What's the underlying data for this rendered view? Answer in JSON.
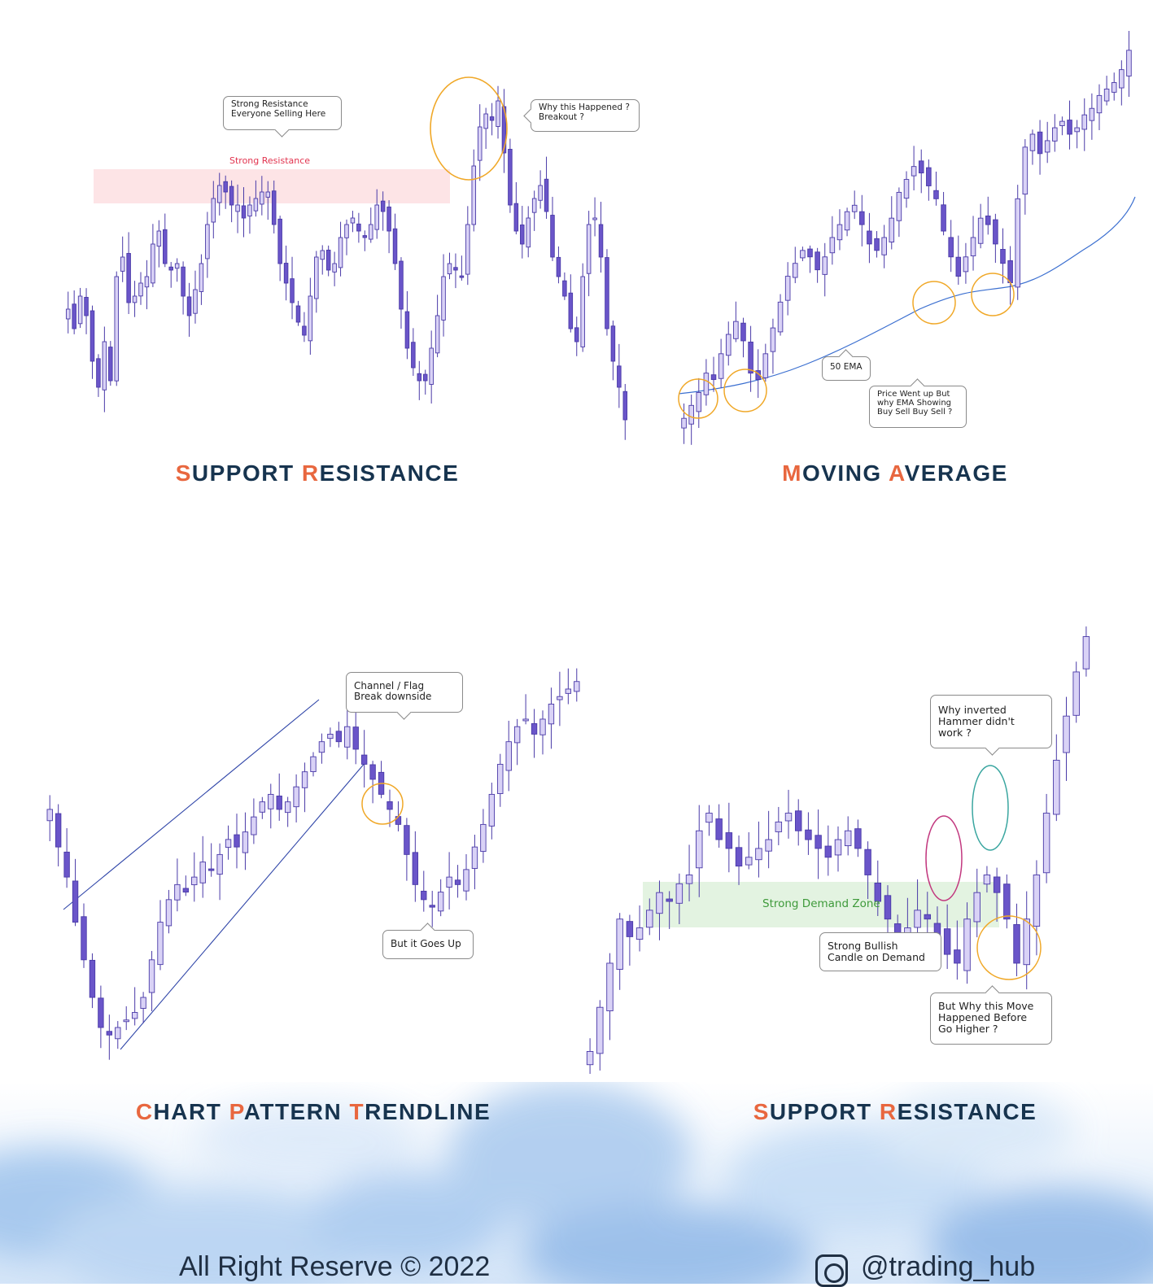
{
  "colors": {
    "heading": "#17344f",
    "accent": "#e8673f",
    "candle_stroke": "#4a3aa8",
    "candle_bull": "#d9d2f6",
    "candle_bear": "#6a55c9",
    "resistance_zone": "#fde4e6",
    "resistance_text": "#e2344f",
    "demand_zone": "#e3f3e1",
    "demand_text": "#3e9a3a",
    "ema_line": "#3b6fd0",
    "trendline": "#2f45a8",
    "orange_circle": "#f0a828",
    "pink_circle": "#c2387f",
    "teal_circle": "#3aa6a0"
  },
  "panels": [
    {
      "id": "support-resistance-1",
      "heading": "SUPPORT RESISTANCE",
      "heading_accent_words": [
        "Support",
        "Resistance"
      ],
      "zone_label": "Strong Resistance",
      "callouts": [
        {
          "lines": [
            "Strong Resistance",
            "Everyone Selling Here"
          ]
        },
        {
          "lines": [
            "Why this Happened ?",
            "Breakout ?"
          ]
        }
      ]
    },
    {
      "id": "moving-average",
      "heading": "MOVING AVERAGE",
      "callouts": [
        {
          "lines": [
            "50 EMA"
          ]
        },
        {
          "lines": [
            "Price  Went up But",
            "why  EMA Showing",
            "Buy Sell Buy Sell  ?"
          ]
        }
      ]
    },
    {
      "id": "chart-pattern-trendline",
      "heading": "CHART PATTERN TRENDLINE",
      "callouts": [
        {
          "lines": [
            "Channel / Flag",
            "Break downside"
          ]
        },
        {
          "lines": [
            "But it Goes Up"
          ]
        }
      ]
    },
    {
      "id": "support-resistance-2",
      "heading": "SUPPORT RESISTANCE",
      "zone_label": "Strong Demand Zone",
      "callouts": [
        {
          "lines": [
            "Why inverted",
            "Hammer didn't",
            "work ?"
          ]
        },
        {
          "lines": [
            "Strong Bullish",
            "Candle on Demand"
          ]
        },
        {
          "lines": [
            "But Why this Move",
            "Happened Before",
            "Go Higher  ?"
          ]
        }
      ]
    }
  ],
  "headings": [
    {
      "parts": [
        {
          "t": "S",
          "acc": true
        },
        {
          "t": "UPPORT ",
          "acc": false
        },
        {
          "t": "R",
          "acc": true
        },
        {
          "t": "ESISTANCE",
          "acc": false
        }
      ]
    },
    {
      "parts": [
        {
          "t": "M",
          "acc": true
        },
        {
          "t": "OVING ",
          "acc": false
        },
        {
          "t": "A",
          "acc": true
        },
        {
          "t": "VERAGE",
          "acc": false
        }
      ]
    },
    {
      "parts": [
        {
          "t": "C",
          "acc": true
        },
        {
          "t": "HART ",
          "acc": false
        },
        {
          "t": "P",
          "acc": true
        },
        {
          "t": "ATTERN ",
          "acc": false
        },
        {
          "t": "T",
          "acc": true
        },
        {
          "t": "RENDLINE",
          "acc": false
        }
      ]
    },
    {
      "parts": [
        {
          "t": "S",
          "acc": true
        },
        {
          "t": "UPPORT ",
          "acc": false
        },
        {
          "t": "R",
          "acc": true
        },
        {
          "t": "ESISTANCE",
          "acc": false
        }
      ]
    }
  ],
  "footer": {
    "copyright": "All Right Reserve  © 2022",
    "handle": "@trading_hub",
    "icon": "instagram-icon"
  },
  "chart_data": [
    {
      "type": "candlestick",
      "title": "SUPPORT RESISTANCE",
      "annotation": "Strong Resistance",
      "close_path": [
        46,
        40,
        50,
        44,
        30,
        22,
        36,
        24,
        56,
        62,
        48,
        50,
        54,
        56,
        66,
        70,
        60,
        58,
        60,
        50,
        44,
        52,
        60,
        72,
        80,
        84,
        82,
        78,
        78,
        74,
        78,
        80,
        82,
        82,
        72,
        60,
        54,
        48,
        42,
        38,
        50,
        62,
        64,
        58,
        60,
        68,
        72,
        74,
        70,
        68,
        72,
        78,
        76,
        70,
        60,
        46,
        34,
        28,
        24,
        24,
        34,
        44,
        56,
        60,
        58,
        56,
        72,
        90,
        102,
        106,
        104,
        110,
        94,
        78,
        70,
        66,
        74,
        80,
        84,
        76,
        62,
        56,
        50,
        40,
        36,
        56,
        72,
        74,
        62,
        40,
        30,
        22,
        12
      ]
    },
    {
      "type": "candlestick",
      "title": "MOVING AVERAGE",
      "series": [
        {
          "name": "50 EMA"
        }
      ],
      "close_path": [
        10,
        14,
        18,
        24,
        22,
        30,
        36,
        40,
        34,
        24,
        22,
        30,
        38,
        46,
        54,
        58,
        62,
        60,
        56,
        60,
        66,
        70,
        74,
        76,
        70,
        64,
        62,
        66,
        72,
        80,
        84,
        88,
        86,
        82,
        78,
        68,
        60,
        54,
        60,
        66,
        72,
        70,
        64,
        58,
        52,
        78,
        94,
        98,
        92,
        96,
        100,
        102,
        98,
        100,
        104,
        106,
        110,
        112,
        114,
        118,
        124
      ]
    },
    {
      "type": "candlestick",
      "title": "CHART PATTERN TRENDLINE",
      "close_path": [
        80,
        70,
        62,
        50,
        40,
        30,
        22,
        20,
        22,
        24,
        26,
        30,
        40,
        50,
        56,
        60,
        58,
        62,
        66,
        64,
        68,
        72,
        70,
        74,
        78,
        82,
        84,
        80,
        82,
        86,
        90,
        94,
        98,
        100,
        98,
        102,
        96,
        92,
        88,
        84,
        80,
        76,
        68,
        60,
        56,
        54,
        58,
        62,
        60,
        64,
        70,
        76,
        84,
        92,
        98,
        102,
        104,
        100,
        104,
        108,
        110,
        112,
        114
      ]
    },
    {
      "type": "candlestick",
      "title": "SUPPORT RESISTANCE",
      "annotation": "Strong Demand Zone",
      "close_path": [
        10,
        20,
        30,
        40,
        36,
        38,
        42,
        46,
        44,
        48,
        50,
        60,
        64,
        58,
        56,
        52,
        54,
        56,
        58,
        62,
        64,
        60,
        58,
        56,
        54,
        58,
        60,
        56,
        50,
        44,
        40,
        36,
        38,
        42,
        40,
        36,
        32,
        30,
        40,
        46,
        50,
        46,
        40,
        30,
        40,
        50,
        64,
        76,
        86,
        96,
        104
      ]
    }
  ]
}
